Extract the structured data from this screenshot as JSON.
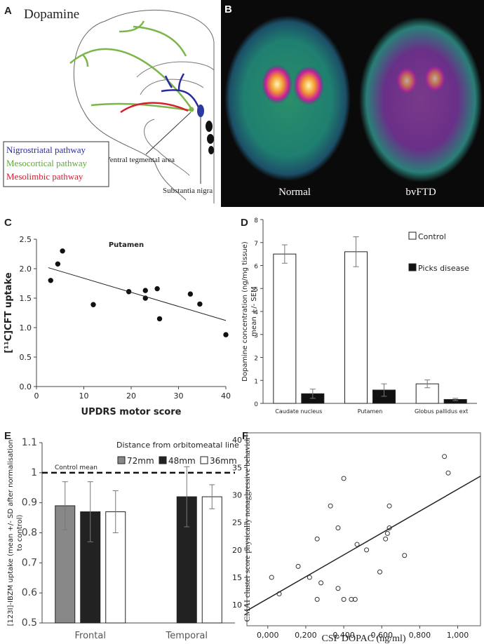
{
  "diagram": {
    "panel_label": "A",
    "title": "Dopamine",
    "legend": [
      "Nigrostriatal pathway",
      "Mesocortical pathway",
      "Mesolimbic pathway"
    ],
    "labels": [
      "Ventral tegmental area",
      "Substantia nigra"
    ]
  },
  "scan": {
    "panel_label": "B",
    "labels": [
      "Normal",
      "bvFTD"
    ]
  },
  "chart_data": [
    {
      "type": "scatter",
      "panel_label": "C",
      "title": "Putamen",
      "xlabel": "UPDRS motor score",
      "ylabel": "[¹¹C]CFT uptake",
      "x": [
        3,
        4.5,
        5.5,
        12,
        19.5,
        23,
        23,
        25.5,
        26,
        32.5,
        34.5,
        40
      ],
      "values": [
        1.8,
        2.08,
        2.3,
        1.39,
        1.61,
        1.63,
        1.5,
        1.66,
        1.15,
        1.57,
        1.4,
        0.88
      ],
      "color": "#111111",
      "trendline": true,
      "xlim": [
        0,
        40
      ],
      "xticks": [
        0,
        10,
        20,
        30,
        40
      ],
      "ylim": [
        0,
        2.5
      ],
      "yticks": [
        {
          "value": 0,
          "label": "0.0"
        },
        0.5,
        {
          "value": 1,
          "label": "1.0"
        },
        1.5,
        {
          "value": 2,
          "label": "2.0"
        },
        2.5
      ]
    },
    {
      "type": "bar",
      "panel_label": "D",
      "ylabel": [
        "Dopamine concentration (ng/mg tissue)",
        "mean +/- SEM"
      ],
      "categories": [
        "Caudate nucleus",
        "Putamen",
        "Globus pallidus ext"
      ],
      "series": [
        {
          "name": "Control",
          "color": "#ffffff",
          "values": [
            6.5,
            6.6,
            0.85
          ],
          "errors": [
            0.4,
            0.65,
            0.17
          ]
        },
        {
          "name": "Picks disease",
          "color": "#111111",
          "values": [
            0.42,
            0.58,
            0.17
          ],
          "errors": [
            0.2,
            0.27,
            0.05
          ]
        }
      ],
      "ylim": [
        0,
        8
      ],
      "yticks": [
        0,
        1,
        2,
        3,
        4,
        5,
        6,
        7,
        8
      ]
    },
    {
      "type": "bar",
      "panel_label": "E",
      "ylabel": [
        "[123I]-IBZM uptake (mean +/- SD after normalisation",
        "to control)"
      ],
      "legend_title": "Distance from orbitomeatal line",
      "categories": [
        "Frontal",
        "Temporal"
      ],
      "series": [
        {
          "name": "72mm",
          "color": "#888888",
          "values": [
            0.89,
            null
          ],
          "errors": [
            0.08,
            null
          ]
        },
        {
          "name": "48mm",
          "color": "#222222",
          "values": [
            0.87,
            0.92
          ],
          "errors": [
            0.1,
            0.1
          ]
        },
        {
          "name": "36mm",
          "color": "#ffffff",
          "values": [
            0.87,
            0.92
          ],
          "errors": [
            0.07,
            0.04
          ]
        }
      ],
      "reference_line": {
        "value": 1,
        "label": "Control mean"
      },
      "ylim": [
        0.5,
        1.1
      ],
      "yticks": [
        0.5,
        0.6,
        0.7,
        0.8,
        0.9,
        1,
        1.1
      ]
    },
    {
      "type": "scatter",
      "panel_label": "F",
      "xlabel": "CSF DOPAC (ng/ml)",
      "ylabel": "CMAI cluster score physically nonaggressive behavior",
      "x": [
        0.02,
        0.06,
        0.16,
        0.22,
        0.26,
        0.26,
        0.28,
        0.33,
        0.37,
        0.37,
        0.4,
        0.4,
        0.44,
        0.46,
        0.47,
        0.52,
        0.59,
        0.62,
        0.63,
        0.64,
        0.64,
        0.72,
        0.93,
        0.95
      ],
      "values": [
        15,
        12,
        17,
        15,
        11,
        22,
        14,
        28,
        24,
        13,
        11,
        33,
        11,
        11,
        21,
        20,
        16,
        22,
        23,
        28,
        24,
        19,
        37,
        34
      ],
      "color": "#333333",
      "trendline": true,
      "hollow": true,
      "xlim": [
        -0.11,
        1.12
      ],
      "xticks": [
        {
          "value": 0,
          "label": "0,000"
        },
        {
          "value": 0.2,
          "label": "0,200"
        },
        {
          "value": 0.4,
          "label": "0,400"
        },
        {
          "value": 0.6,
          "label": "0,600"
        },
        {
          "value": 0.8,
          "label": "0,800"
        },
        {
          "value": 1,
          "label": "1,000"
        }
      ],
      "ylim": [
        6.2,
        41.3
      ],
      "yticks": [
        10,
        15,
        20,
        25,
        30,
        35,
        40
      ]
    }
  ]
}
